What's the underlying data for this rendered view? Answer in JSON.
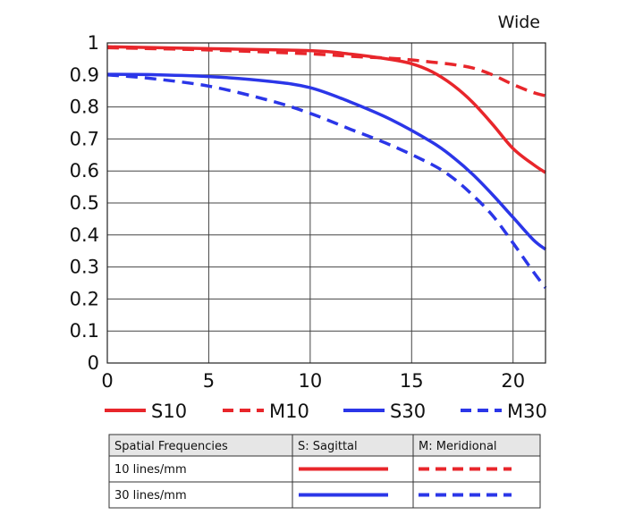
{
  "chart_data": {
    "type": "line",
    "title": "Wide",
    "xlabel": "",
    "ylabel": "",
    "xlim": [
      0,
      21.6
    ],
    "ylim": [
      0,
      1
    ],
    "x_ticks": [
      "0",
      "5",
      "10",
      "15",
      "20"
    ],
    "y_ticks": [
      "0",
      "0.1",
      "0.2",
      "0.3",
      "0.4",
      "0.5",
      "0.6",
      "0.7",
      "0.8",
      "0.9",
      "1"
    ],
    "grid": true,
    "series": [
      {
        "name": "S10",
        "color": "#e8262b",
        "dash": "solid",
        "x": [
          0,
          5,
          10,
          12,
          14,
          15,
          16,
          17,
          18,
          19,
          20,
          21,
          21.6
        ],
        "y": [
          0.988,
          0.982,
          0.976,
          0.965,
          0.948,
          0.935,
          0.91,
          0.87,
          0.815,
          0.745,
          0.67,
          0.62,
          0.595
        ]
      },
      {
        "name": "M10",
        "color": "#e8262b",
        "dash": "dashed",
        "x": [
          0,
          5,
          10,
          12,
          14,
          15,
          16,
          17,
          18,
          19,
          20,
          21,
          21.6
        ],
        "y": [
          0.985,
          0.978,
          0.966,
          0.958,
          0.952,
          0.947,
          0.94,
          0.933,
          0.922,
          0.9,
          0.87,
          0.845,
          0.835
        ]
      },
      {
        "name": "S30",
        "color": "#2b36e8",
        "dash": "solid",
        "x": [
          0,
          2,
          5,
          8,
          10,
          12,
          14,
          16,
          17,
          18,
          19,
          20,
          21,
          21.6
        ],
        "y": [
          0.902,
          0.901,
          0.895,
          0.88,
          0.86,
          0.815,
          0.76,
          0.69,
          0.645,
          0.59,
          0.525,
          0.455,
          0.385,
          0.355
        ]
      },
      {
        "name": "M30",
        "color": "#2b36e8",
        "dash": "dashed",
        "x": [
          0,
          2,
          5,
          8,
          10,
          12,
          14,
          16,
          17,
          18,
          19,
          20,
          21,
          21.6
        ],
        "y": [
          0.9,
          0.89,
          0.865,
          0.82,
          0.78,
          0.73,
          0.68,
          0.62,
          0.58,
          0.525,
          0.46,
          0.375,
          0.285,
          0.235
        ]
      }
    ]
  },
  "legend": [
    {
      "label": "S10",
      "color": "#e8262b",
      "dash": "solid"
    },
    {
      "label": "M10",
      "color": "#e8262b",
      "dash": "dashed"
    },
    {
      "label": "S30",
      "color": "#2b36e8",
      "dash": "solid"
    },
    {
      "label": "M30",
      "color": "#2b36e8",
      "dash": "dashed"
    }
  ],
  "key_table": {
    "headers": [
      "Spatial Frequencies",
      "S: Sagittal",
      "M: Meridional"
    ],
    "rows": [
      {
        "label": "10 lines/mm",
        "color": "#e8262b"
      },
      {
        "label": "30 lines/mm",
        "color": "#2b36e8"
      }
    ]
  }
}
